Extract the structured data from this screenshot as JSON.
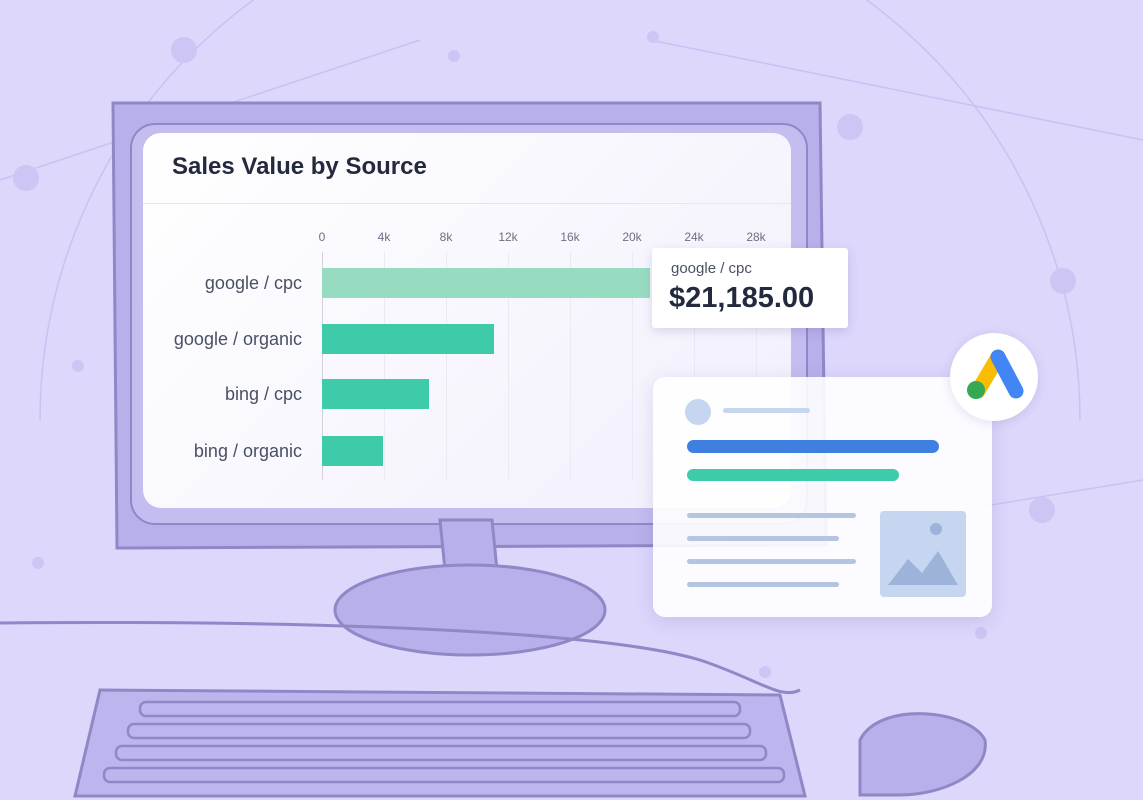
{
  "chart_data": {
    "type": "bar",
    "orientation": "horizontal",
    "title": "Sales Value by Source",
    "categories": [
      "google / cpc",
      "google / organic",
      "bing / cpc",
      "bing / organic"
    ],
    "values": [
      21185,
      11100,
      6900,
      3950
    ],
    "xlim": [
      0,
      28000
    ],
    "ticks": [
      0,
      4000,
      8000,
      12000,
      16000,
      20000,
      24000,
      28000
    ],
    "tick_labels": [
      "0",
      "4k",
      "8k",
      "12k",
      "16k",
      "20k",
      "24k",
      "28k"
    ],
    "grid": true,
    "highlighted_category": "google / cpc",
    "colors": {
      "bar": "#3ecbaa",
      "highlight": "#97dcc0"
    }
  },
  "tooltip": {
    "label": "google / cpc",
    "value": "$21,185.00"
  },
  "ad_logo": {
    "icon": "google-ads-icon",
    "colors": [
      "#fbbc04",
      "#4285f4",
      "#34a853"
    ]
  },
  "colors": {
    "background": "#dcd7fb",
    "monitor": "#b7b0ea",
    "outline": "#8f88c6"
  }
}
